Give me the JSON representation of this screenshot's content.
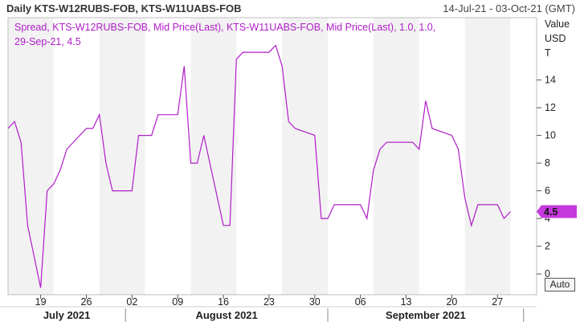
{
  "header": {
    "title": "Daily KTS-W12RUBS-FOB, KTS-W11UABS-FOB",
    "date_range": "14-Jul-21 - 03-Oct-21 (GMT)"
  },
  "legend": {
    "line1": "Spread, KTS-W12RUBS-FOB, Mid Price(Last), KTS-W11UABS-FOB, Mid Price(Last),  1.0, 1.0,",
    "line2": "29-Sep-21, 4.5"
  },
  "axis_unit": {
    "line1": "Value",
    "line2": "USD",
    "line3": "T"
  },
  "controls": {
    "auto_label": "Auto"
  },
  "colors": {
    "series": "#b01cc8",
    "band": "#f2f2f2",
    "marker_bg": "#c43adc"
  },
  "chart_data": {
    "type": "line",
    "x_start": "2021-07-14",
    "x_end": "2021-10-03",
    "ylim": [
      -1.5,
      18.5
    ],
    "y_ticks": [
      0,
      2,
      4,
      6,
      8,
      10,
      12,
      14
    ],
    "y_tick_labels": [
      "0",
      "2",
      "4",
      "6",
      "8",
      "10",
      "12",
      "14"
    ],
    "x_ticks": [
      {
        "date": "2021-07-19",
        "label": "19"
      },
      {
        "date": "2021-07-26",
        "label": "26"
      },
      {
        "date": "2021-08-02",
        "label": "02"
      },
      {
        "date": "2021-08-09",
        "label": "09"
      },
      {
        "date": "2021-08-16",
        "label": "16"
      },
      {
        "date": "2021-08-23",
        "label": "23"
      },
      {
        "date": "2021-08-30",
        "label": "30"
      },
      {
        "date": "2021-09-06",
        "label": "06"
      },
      {
        "date": "2021-09-13",
        "label": "13"
      },
      {
        "date": "2021-09-20",
        "label": "20"
      },
      {
        "date": "2021-09-27",
        "label": "27"
      }
    ],
    "months": [
      {
        "label": "July 2021",
        "start": "2021-07-14",
        "end": "2021-08-01"
      },
      {
        "label": "August 2021",
        "start": "2021-08-01",
        "end": "2021-09-01"
      },
      {
        "label": "September 2021",
        "start": "2021-09-01",
        "end": "2021-10-01"
      }
    ],
    "grid": false,
    "last_value": "4.5",
    "series": [
      {
        "name": "Spread, KTS-W12RUBS-FOB, Mid Price(Last), KTS-W11UABS-FOB, Mid Price(Last)",
        "points": [
          [
            "2021-07-14",
            10.5
          ],
          [
            "2021-07-15",
            11.0
          ],
          [
            "2021-07-16",
            9.5
          ],
          [
            "2021-07-17",
            3.5
          ],
          [
            "2021-07-19",
            -1.0
          ],
          [
            "2021-07-20",
            6.0
          ],
          [
            "2021-07-21",
            6.5
          ],
          [
            "2021-07-22",
            7.5
          ],
          [
            "2021-07-23",
            9.0
          ],
          [
            "2021-07-26",
            10.5
          ],
          [
            "2021-07-27",
            10.5
          ],
          [
            "2021-07-28",
            11.5
          ],
          [
            "2021-07-29",
            8.0
          ],
          [
            "2021-07-30",
            6.0
          ],
          [
            "2021-08-02",
            6.0
          ],
          [
            "2021-08-03",
            10.0
          ],
          [
            "2021-08-04",
            10.0
          ],
          [
            "2021-08-05",
            10.0
          ],
          [
            "2021-08-06",
            11.5
          ],
          [
            "2021-08-09",
            11.5
          ],
          [
            "2021-08-10",
            15.0
          ],
          [
            "2021-08-11",
            8.0
          ],
          [
            "2021-08-12",
            8.0
          ],
          [
            "2021-08-13",
            10.0
          ],
          [
            "2021-08-16",
            3.5
          ],
          [
            "2021-08-17",
            3.5
          ],
          [
            "2021-08-18",
            15.5
          ],
          [
            "2021-08-19",
            16.0
          ],
          [
            "2021-08-23",
            16.0
          ],
          [
            "2021-08-24",
            16.5
          ],
          [
            "2021-08-25",
            15.0
          ],
          [
            "2021-08-26",
            11.0
          ],
          [
            "2021-08-27",
            10.5
          ],
          [
            "2021-08-30",
            10.0
          ],
          [
            "2021-08-31",
            4.0
          ],
          [
            "2021-09-01",
            4.0
          ],
          [
            "2021-09-02",
            5.0
          ],
          [
            "2021-09-06",
            5.0
          ],
          [
            "2021-09-07",
            4.0
          ],
          [
            "2021-09-08",
            7.5
          ],
          [
            "2021-09-09",
            9.0
          ],
          [
            "2021-09-10",
            9.5
          ],
          [
            "2021-09-14",
            9.5
          ],
          [
            "2021-09-15",
            9.0
          ],
          [
            "2021-09-16",
            12.5
          ],
          [
            "2021-09-17",
            10.5
          ],
          [
            "2021-09-20",
            10.0
          ],
          [
            "2021-09-21",
            9.0
          ],
          [
            "2021-09-22",
            5.5
          ],
          [
            "2021-09-23",
            3.5
          ],
          [
            "2021-09-24",
            5.0
          ],
          [
            "2021-09-27",
            5.0
          ],
          [
            "2021-09-28",
            4.0
          ],
          [
            "2021-09-29",
            4.5
          ]
        ]
      }
    ]
  }
}
